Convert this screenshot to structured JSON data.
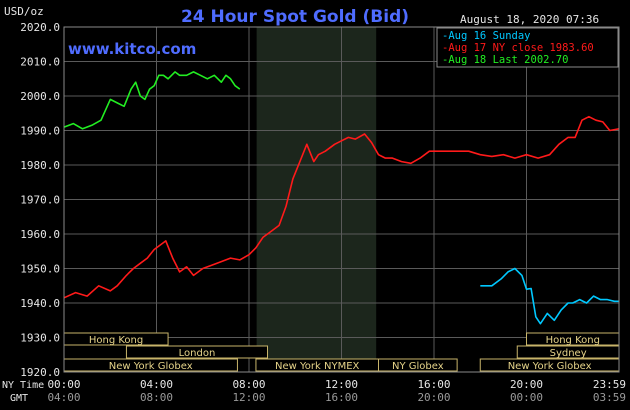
{
  "chart_data": {
    "type": "line",
    "title": "24 Hour Spot Gold (Bid)",
    "unit_label": "USD/oz",
    "site": "www.kitco.com",
    "timestamp": "August 18, 2020 07:36",
    "ylim": [
      1920,
      2020
    ],
    "y_ticks": [
      "2020.0",
      "2010.0",
      "2000.0",
      "1990.0",
      "1980.0",
      "1970.0",
      "1960.0",
      "1950.0",
      "1940.0",
      "1930.0",
      "1920.0"
    ],
    "y_tick_values": [
      2020,
      2010,
      2000,
      1990,
      1980,
      1970,
      1960,
      1950,
      1940,
      1930,
      1920
    ],
    "xlim": [
      0,
      24
    ],
    "x_tick_hours": [
      0,
      4,
      8,
      12,
      16,
      20,
      24
    ],
    "x_ticks_ny": [
      "00:00",
      "04:00",
      "08:00",
      "12:00",
      "16:00",
      "20:00",
      "23:59"
    ],
    "x_ticks_gmt": [
      "04:00",
      "08:00",
      "12:00",
      "16:00",
      "20:00",
      "00:00",
      "03:59"
    ],
    "ny_time_label": "NY Time",
    "gmt_label": "GMT",
    "ny_market_hours": [
      8.33,
      13.5
    ],
    "legend": [
      {
        "text": "Aug 16 Sunday",
        "color": "#00c8ff"
      },
      {
        "text": "Aug 17 NY close 1983.60",
        "color": "#ff1a1a"
      },
      {
        "text": "Aug 18 Last 2002.70",
        "color": "#22ee22"
      }
    ],
    "series": [
      {
        "name": "Aug 16 Sunday",
        "color": "#00c8ff",
        "x": [
          18.0,
          18.5,
          18.9,
          19.2,
          19.5,
          19.8,
          20.0,
          20.2,
          20.4,
          20.6,
          20.9,
          21.2,
          21.5,
          21.8,
          22.0,
          22.3,
          22.6,
          22.9,
          23.2,
          23.5,
          23.8,
          24.0
        ],
        "y": [
          1945.0,
          1945.0,
          1947.0,
          1949.0,
          1950.0,
          1948.0,
          1944.0,
          1944.2,
          1936.0,
          1934.0,
          1937.0,
          1935.0,
          1938.0,
          1940.0,
          1940.0,
          1941.0,
          1940.0,
          1942.0,
          1941.0,
          1941.0,
          1940.5,
          1940.5
        ]
      },
      {
        "name": "Aug 17 NY close 1983.60",
        "color": "#ff1a1a",
        "x": [
          0.0,
          0.5,
          1.0,
          1.5,
          2.0,
          2.3,
          2.7,
          3.0,
          3.3,
          3.6,
          3.9,
          4.2,
          4.4,
          4.7,
          5.0,
          5.3,
          5.6,
          6.0,
          6.4,
          6.8,
          7.2,
          7.6,
          8.0,
          8.3,
          8.6,
          9.0,
          9.3,
          9.6,
          9.9,
          10.2,
          10.5,
          10.8,
          11.0,
          11.3,
          11.7,
          12.0,
          12.3,
          12.6,
          13.0,
          13.3,
          13.6,
          13.9,
          14.2,
          14.6,
          15.0,
          15.4,
          15.8,
          16.2,
          16.6,
          17.0,
          17.5,
          18.0,
          18.5,
          19.0,
          19.5,
          20.0,
          20.5,
          21.0,
          21.4,
          21.8,
          22.1,
          22.4,
          22.7,
          23.0,
          23.3,
          23.6,
          24.0
        ],
        "y": [
          1941.5,
          1943.0,
          1942.0,
          1945.0,
          1943.5,
          1945.0,
          1948.0,
          1950.0,
          1951.5,
          1953.0,
          1955.5,
          1957.0,
          1958.0,
          1953.0,
          1949.0,
          1950.5,
          1948.0,
          1950.0,
          1951.0,
          1952.0,
          1953.0,
          1952.5,
          1954.0,
          1956.0,
          1959.0,
          1961.0,
          1962.5,
          1968.0,
          1976.0,
          1981.0,
          1986.0,
          1981.0,
          1983.0,
          1984.0,
          1986.0,
          1987.0,
          1988.0,
          1987.5,
          1989.0,
          1986.5,
          1983.0,
          1982.0,
          1982.0,
          1981.0,
          1980.5,
          1982.0,
          1984.0,
          1984.0,
          1984.0,
          1984.0,
          1984.0,
          1983.0,
          1982.5,
          1983.0,
          1982.0,
          1983.0,
          1982.0,
          1983.0,
          1986.0,
          1988.0,
          1988.0,
          1993.0,
          1994.0,
          1993.0,
          1992.5,
          1990.0,
          1990.5
        ]
      },
      {
        "name": "Aug 18 Last 2002.70",
        "color": "#22ee22",
        "x": [
          0.0,
          0.4,
          0.8,
          1.2,
          1.6,
          2.0,
          2.3,
          2.6,
          2.9,
          3.1,
          3.3,
          3.5,
          3.7,
          3.9,
          4.1,
          4.3,
          4.5,
          4.8,
          5.0,
          5.3,
          5.6,
          5.9,
          6.2,
          6.5,
          6.8,
          7.0,
          7.2,
          7.4,
          7.6
        ],
        "y": [
          1991.0,
          1992.0,
          1990.5,
          1991.5,
          1993.0,
          1999.0,
          1998.0,
          1997.0,
          2002.0,
          2004.0,
          2000.0,
          1999.0,
          2002.0,
          2003.0,
          2006.0,
          2006.0,
          2005.0,
          2007.0,
          2006.0,
          2006.0,
          2007.0,
          2006.0,
          2005.0,
          2006.0,
          2004.0,
          2006.0,
          2005.0,
          2003.0,
          2002.0
        ]
      }
    ],
    "sessions": {
      "row1": [
        {
          "label": "Hong Kong",
          "start": 0.0,
          "end": 4.5
        },
        {
          "label": "Hong Kong",
          "start": 20.0,
          "end": 24.0
        }
      ],
      "row2": [
        {
          "label": "London",
          "start": 2.7,
          "end": 8.8
        },
        {
          "label": "Sydney",
          "start": 19.6,
          "end": 24.0
        }
      ],
      "row3": [
        {
          "label": "New York Globex",
          "start": 0.0,
          "end": 7.5
        },
        {
          "label": "New York NYMEX",
          "start": 8.3,
          "end": 13.6
        },
        {
          "label": "NY Globex",
          "start": 13.6,
          "end": 17.0
        },
        {
          "label": "New York Globex",
          "start": 18.0,
          "end": 24.0
        }
      ]
    }
  }
}
